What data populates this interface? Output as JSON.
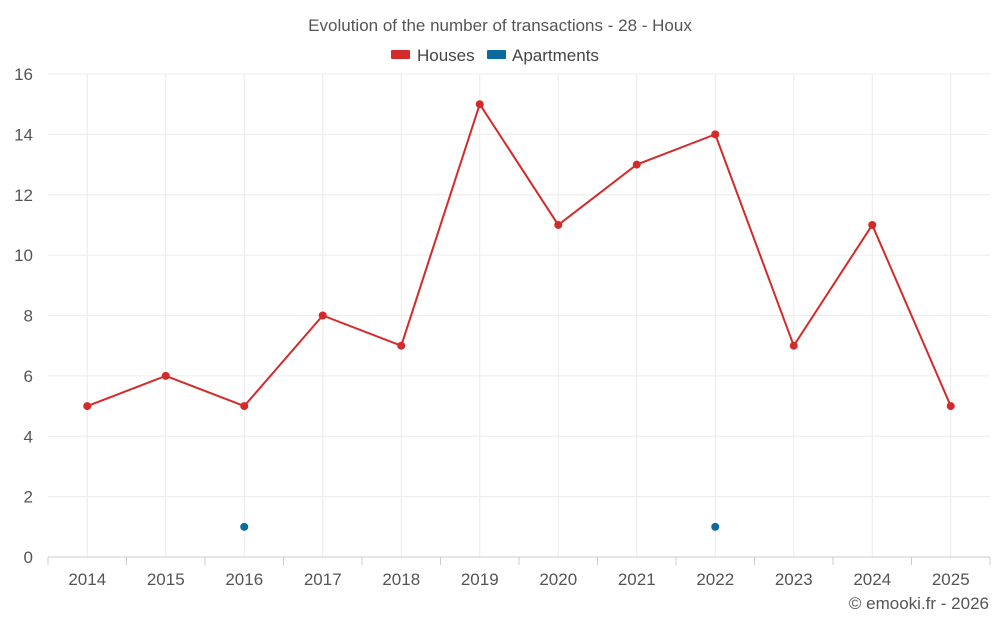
{
  "chart_data": {
    "type": "line",
    "title": "Evolution of the number of transactions - 28 - Houx",
    "categories": [
      "2014",
      "2015",
      "2016",
      "2017",
      "2018",
      "2019",
      "2020",
      "2021",
      "2022",
      "2023",
      "2024",
      "2025"
    ],
    "series": [
      {
        "name": "Houses",
        "color": "#d42a2a",
        "values": [
          5,
          6,
          5,
          8,
          7,
          15,
          11,
          13,
          14,
          7,
          11,
          5
        ],
        "line": true
      },
      {
        "name": "Apartments",
        "color": "#0b6a9e",
        "values": [
          null,
          null,
          1,
          null,
          null,
          null,
          null,
          null,
          1,
          null,
          null,
          null
        ],
        "line": false
      }
    ],
    "yticks": [
      "0",
      "2",
      "4",
      "6",
      "8",
      "10",
      "12",
      "14",
      "16"
    ],
    "ylim": [
      0,
      16
    ],
    "xlabel": "",
    "ylabel": "",
    "grid": true,
    "legend_position": "top-center"
  },
  "credit": "© emooki.fr - 2026"
}
